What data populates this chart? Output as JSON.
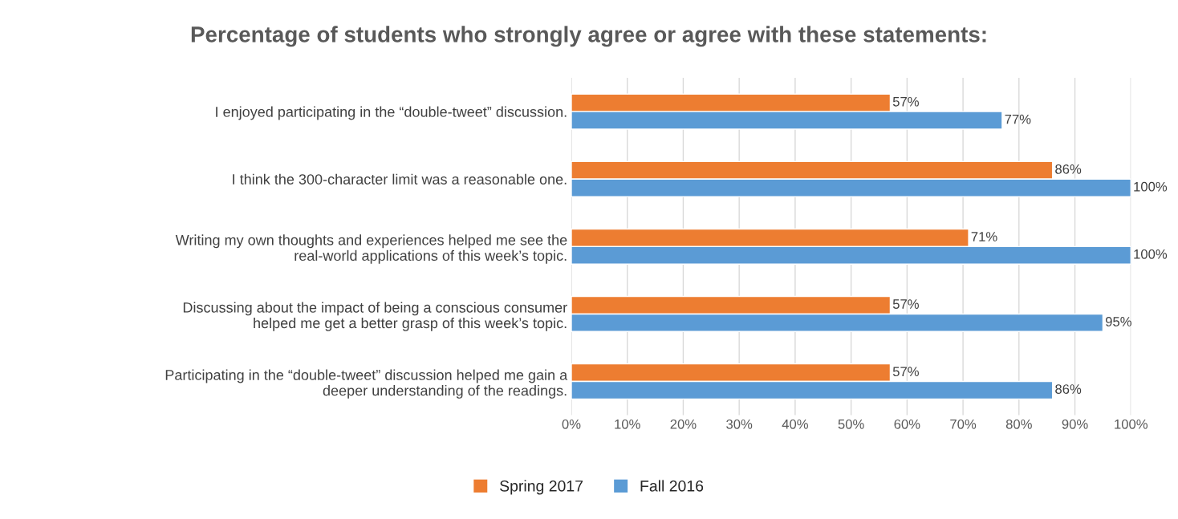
{
  "chart_data": {
    "type": "bar",
    "orientation": "horizontal",
    "title": "Percentage of students who strongly agree or agree with these statements:",
    "categories": [
      "I enjoyed participating in the “double-tweet” discussion.",
      "I think the 300-character limit was a reasonable one.",
      "Writing my own thoughts and experiences helped me see the\nreal-world applications of this week’s topic.",
      "Discussing about the impact of being a conscious consumer\nhelped me get a better grasp of this week’s topic.",
      "Participating in the “double-tweet” discussion helped me gain a\ndeeper understanding of the readings."
    ],
    "series": [
      {
        "name": "Spring 2017",
        "color": "#ed7d31",
        "values": [
          57,
          86,
          71,
          57,
          57
        ],
        "value_labels": [
          "57%",
          "86%",
          "71%",
          "57%",
          "57%"
        ]
      },
      {
        "name": "Fall 2016",
        "color": "#5b9bd5",
        "values": [
          77,
          100,
          100,
          95,
          86
        ],
        "value_labels": [
          "77%",
          "100%",
          "100%",
          "95%",
          "86%"
        ]
      }
    ],
    "xlim": [
      0,
      100
    ],
    "xticks": [
      {
        "value": 0,
        "label": "0%"
      },
      {
        "value": 10,
        "label": "10%"
      },
      {
        "value": 20,
        "label": "20%"
      },
      {
        "value": 30,
        "label": "30%"
      },
      {
        "value": 40,
        "label": "40%"
      },
      {
        "value": 50,
        "label": "50%"
      },
      {
        "value": 60,
        "label": "60%"
      },
      {
        "value": 70,
        "label": "70%"
      },
      {
        "value": 80,
        "label": "80%"
      },
      {
        "value": 90,
        "label": "90%"
      },
      {
        "value": 100,
        "label": "100%"
      }
    ],
    "grid": "x",
    "legend": "bottom"
  }
}
